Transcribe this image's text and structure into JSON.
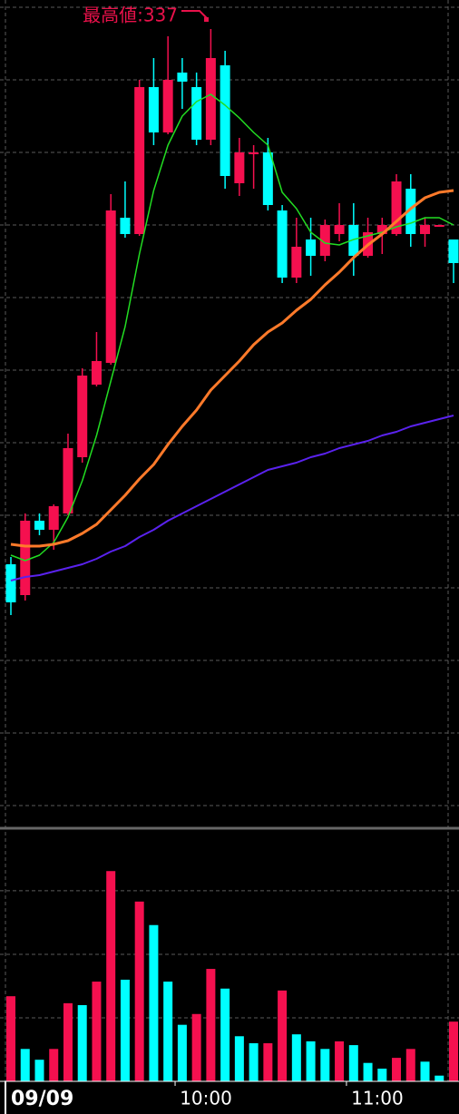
{
  "chart_data": {
    "type": "candlestick",
    "annotation": "最高値:337",
    "annotation_color": "#e8114a",
    "date_label": "09/09",
    "xticks": [
      {
        "value": 11.5,
        "label": "10:00"
      },
      {
        "value": 23.5,
        "label": "11:00"
      }
    ],
    "ylim": [
      227,
      341
    ],
    "yticks": [
      340,
      330,
      320,
      310,
      300,
      290,
      280,
      270,
      260,
      250,
      240,
      230
    ],
    "grid": true,
    "up_color": "#f5104f",
    "down_color": "#00ffff",
    "open": [
      263.25,
      259,
      269.25,
      268,
      270.25,
      278,
      288,
      291,
      311,
      308.75,
      329,
      322.75,
      331,
      329,
      321.75,
      332,
      315.75,
      319.75,
      320,
      312,
      302.75,
      308,
      305.75,
      308.75,
      310,
      305.75,
      308.75,
      308.75,
      315,
      308.75,
      309.75,
      308
    ],
    "high": [
      264.25,
      270.25,
      270.25,
      271.5,
      281.25,
      290.25,
      295.25,
      314.25,
      316,
      330,
      333,
      336,
      333,
      331,
      337,
      334,
      322,
      321,
      322,
      312.75,
      311,
      311,
      310.75,
      313,
      313,
      311,
      311,
      317,
      317,
      311,
      310,
      308
    ],
    "low": [
      256.25,
      258.25,
      267.25,
      265.25,
      270,
      277.25,
      287.75,
      290.75,
      308.25,
      308.5,
      321,
      322.5,
      326,
      321,
      321,
      315,
      314,
      315,
      312,
      302,
      302,
      303,
      305,
      307.75,
      303,
      305.5,
      306,
      308.5,
      307,
      307,
      309.75,
      302
    ],
    "close": [
      258,
      269.25,
      268,
      271.25,
      279.25,
      289.25,
      291.25,
      312,
      308.75,
      329,
      322.75,
      330,
      329.75,
      321.75,
      333,
      316.75,
      320,
      320,
      312.75,
      302.75,
      307,
      305.75,
      310,
      310,
      305.75,
      309,
      310,
      316,
      308.75,
      310,
      310,
      304.75
    ],
    "moving_averages": [
      {
        "color": "#22dd22",
        "width": 1.5,
        "values": [
          264.5,
          263.75,
          264.5,
          266.25,
          269.75,
          274.75,
          281,
          288.5,
          296,
          306,
          314.75,
          321,
          325,
          327,
          328,
          326.5,
          324.75,
          322.75,
          321,
          314.5,
          312.25,
          309,
          307.5,
          307.25,
          308,
          308.5,
          309,
          309.75,
          310.25,
          311,
          311,
          310
        ]
      },
      {
        "color": "#ff7a2a",
        "width": 3,
        "values": [
          266,
          265.75,
          265.75,
          266,
          266.5,
          267.5,
          268.75,
          270.75,
          272.75,
          275,
          277,
          279.75,
          282.25,
          284.5,
          287.25,
          289.25,
          291.25,
          293.5,
          295.25,
          296.5,
          298.25,
          299.75,
          301.75,
          303.5,
          305.5,
          307.25,
          308.75,
          310.5,
          312.25,
          313.75,
          314.5,
          314.75
        ]
      },
      {
        "color": "#5a22ee",
        "width": 2,
        "values": [
          261,
          261.5,
          261.75,
          262.25,
          262.75,
          263.25,
          264,
          265,
          265.75,
          267,
          268,
          269.25,
          270.25,
          271.25,
          272.25,
          273.25,
          274.25,
          275.25,
          276.25,
          276.75,
          277.25,
          278,
          278.5,
          279.25,
          279.75,
          280.25,
          281,
          281.5,
          282.25,
          282.75,
          283.25,
          283.75
        ]
      }
    ],
    "volume": {
      "ylim": [
        0,
        397
      ],
      "yticks": [
        100,
        200,
        300
      ],
      "values": [
        134,
        51,
        34,
        51,
        123,
        120,
        157,
        331,
        160,
        283,
        246,
        157,
        89,
        106,
        177,
        146,
        71,
        60,
        60,
        143,
        74,
        63,
        51,
        63,
        57,
        29,
        20,
        37,
        51,
        31,
        9,
        94
      ],
      "colors": [
        "#f5104f",
        "#00ffff",
        "#00ffff",
        "#f5104f",
        "#f5104f",
        "#00ffff",
        "#f5104f",
        "#f5104f",
        "#00ffff",
        "#f5104f",
        "#00ffff",
        "#00ffff",
        "#00ffff",
        "#f5104f",
        "#f5104f",
        "#00ffff",
        "#00ffff",
        "#00ffff",
        "#f5104f",
        "#f5104f",
        "#00ffff",
        "#00ffff",
        "#00ffff",
        "#f5104f",
        "#00ffff",
        "#00ffff",
        "#00ffff",
        "#f5104f",
        "#f5104f",
        "#00ffff",
        "#00ffff",
        "#f5104f"
      ]
    }
  }
}
